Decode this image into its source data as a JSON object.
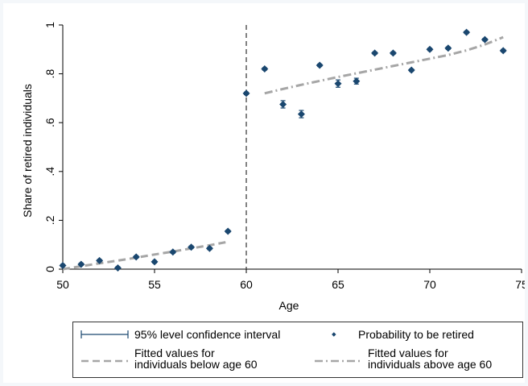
{
  "chart_data": {
    "type": "scatter",
    "xlabel": "Age",
    "ylabel": "Share of retired individuals",
    "xlim": [
      50,
      75
    ],
    "ylim": [
      0,
      1
    ],
    "xticks": [
      50,
      55,
      60,
      65,
      70,
      75
    ],
    "yticks": [
      0,
      0.2,
      0.4,
      0.6,
      0.8,
      1
    ],
    "ytick_labels": [
      "0",
      ".2",
      ".4",
      ".6",
      ".8",
      "1"
    ],
    "cutoff": 60,
    "grid": false,
    "legend_position": "bottom",
    "series": [
      {
        "name": "Probability to be retired",
        "color": "#1a476f",
        "marker": "diamond",
        "points": [
          {
            "x": 50,
            "y": 0.015,
            "lo": 0.01,
            "hi": 0.02
          },
          {
            "x": 51,
            "y": 0.02,
            "lo": 0.015,
            "hi": 0.025
          },
          {
            "x": 52,
            "y": 0.035,
            "lo": 0.03,
            "hi": 0.04
          },
          {
            "x": 53,
            "y": 0.005,
            "lo": 0.0,
            "hi": 0.01
          },
          {
            "x": 54,
            "y": 0.05,
            "lo": 0.045,
            "hi": 0.055
          },
          {
            "x": 55,
            "y": 0.03,
            "lo": 0.025,
            "hi": 0.035
          },
          {
            "x": 56,
            "y": 0.07,
            "lo": 0.065,
            "hi": 0.075
          },
          {
            "x": 57,
            "y": 0.09,
            "lo": 0.085,
            "hi": 0.095
          },
          {
            "x": 58,
            "y": 0.085,
            "lo": 0.08,
            "hi": 0.09
          },
          {
            "x": 59,
            "y": 0.155,
            "lo": 0.15,
            "hi": 0.16
          },
          {
            "x": 60,
            "y": 0.72,
            "lo": 0.715,
            "hi": 0.725
          },
          {
            "x": 61,
            "y": 0.82,
            "lo": 0.815,
            "hi": 0.825
          },
          {
            "x": 62,
            "y": 0.675,
            "lo": 0.66,
            "hi": 0.69
          },
          {
            "x": 63,
            "y": 0.635,
            "lo": 0.62,
            "hi": 0.65
          },
          {
            "x": 64,
            "y": 0.835,
            "lo": 0.83,
            "hi": 0.84
          },
          {
            "x": 65,
            "y": 0.76,
            "lo": 0.745,
            "hi": 0.775
          },
          {
            "x": 66,
            "y": 0.77,
            "lo": 0.758,
            "hi": 0.782
          },
          {
            "x": 67,
            "y": 0.885,
            "lo": 0.88,
            "hi": 0.89
          },
          {
            "x": 68,
            "y": 0.885,
            "lo": 0.88,
            "hi": 0.89
          },
          {
            "x": 69,
            "y": 0.815,
            "lo": 0.81,
            "hi": 0.82
          },
          {
            "x": 70,
            "y": 0.9,
            "lo": 0.895,
            "hi": 0.905
          },
          {
            "x": 71,
            "y": 0.905,
            "lo": 0.9,
            "hi": 0.91
          },
          {
            "x": 72,
            "y": 0.97,
            "lo": 0.965,
            "hi": 0.975
          },
          {
            "x": 73,
            "y": 0.94,
            "lo": 0.935,
            "hi": 0.945
          },
          {
            "x": 74,
            "y": 0.895,
            "lo": 0.89,
            "hi": 0.9
          }
        ]
      },
      {
        "name": "95% level confidence interval",
        "color": "#1a476f",
        "style": "capped-bar"
      },
      {
        "name": "Fitted values for individuals below age 60",
        "name_lines": [
          "Fitted values for",
          "individuals below age 60"
        ],
        "color": "#a6a6a6",
        "style": "dashed",
        "x": [
          50,
          51,
          52,
          53,
          54,
          55,
          56,
          57,
          58,
          59
        ],
        "y": [
          0.0,
          0.012,
          0.024,
          0.035,
          0.047,
          0.06,
          0.072,
          0.085,
          0.098,
          0.112
        ]
      },
      {
        "name": "Fitted values for individuals above age 60",
        "name_lines": [
          "Fitted values for",
          "individuals above age 60"
        ],
        "color": "#a6a6a6",
        "style": "dashdot",
        "x": [
          61,
          62,
          63,
          64,
          65,
          66,
          67,
          68,
          69,
          70,
          71,
          72,
          73,
          74
        ],
        "y": [
          0.72,
          0.738,
          0.755,
          0.771,
          0.787,
          0.802,
          0.817,
          0.832,
          0.847,
          0.862,
          0.877,
          0.896,
          0.92,
          0.95
        ]
      }
    ]
  }
}
